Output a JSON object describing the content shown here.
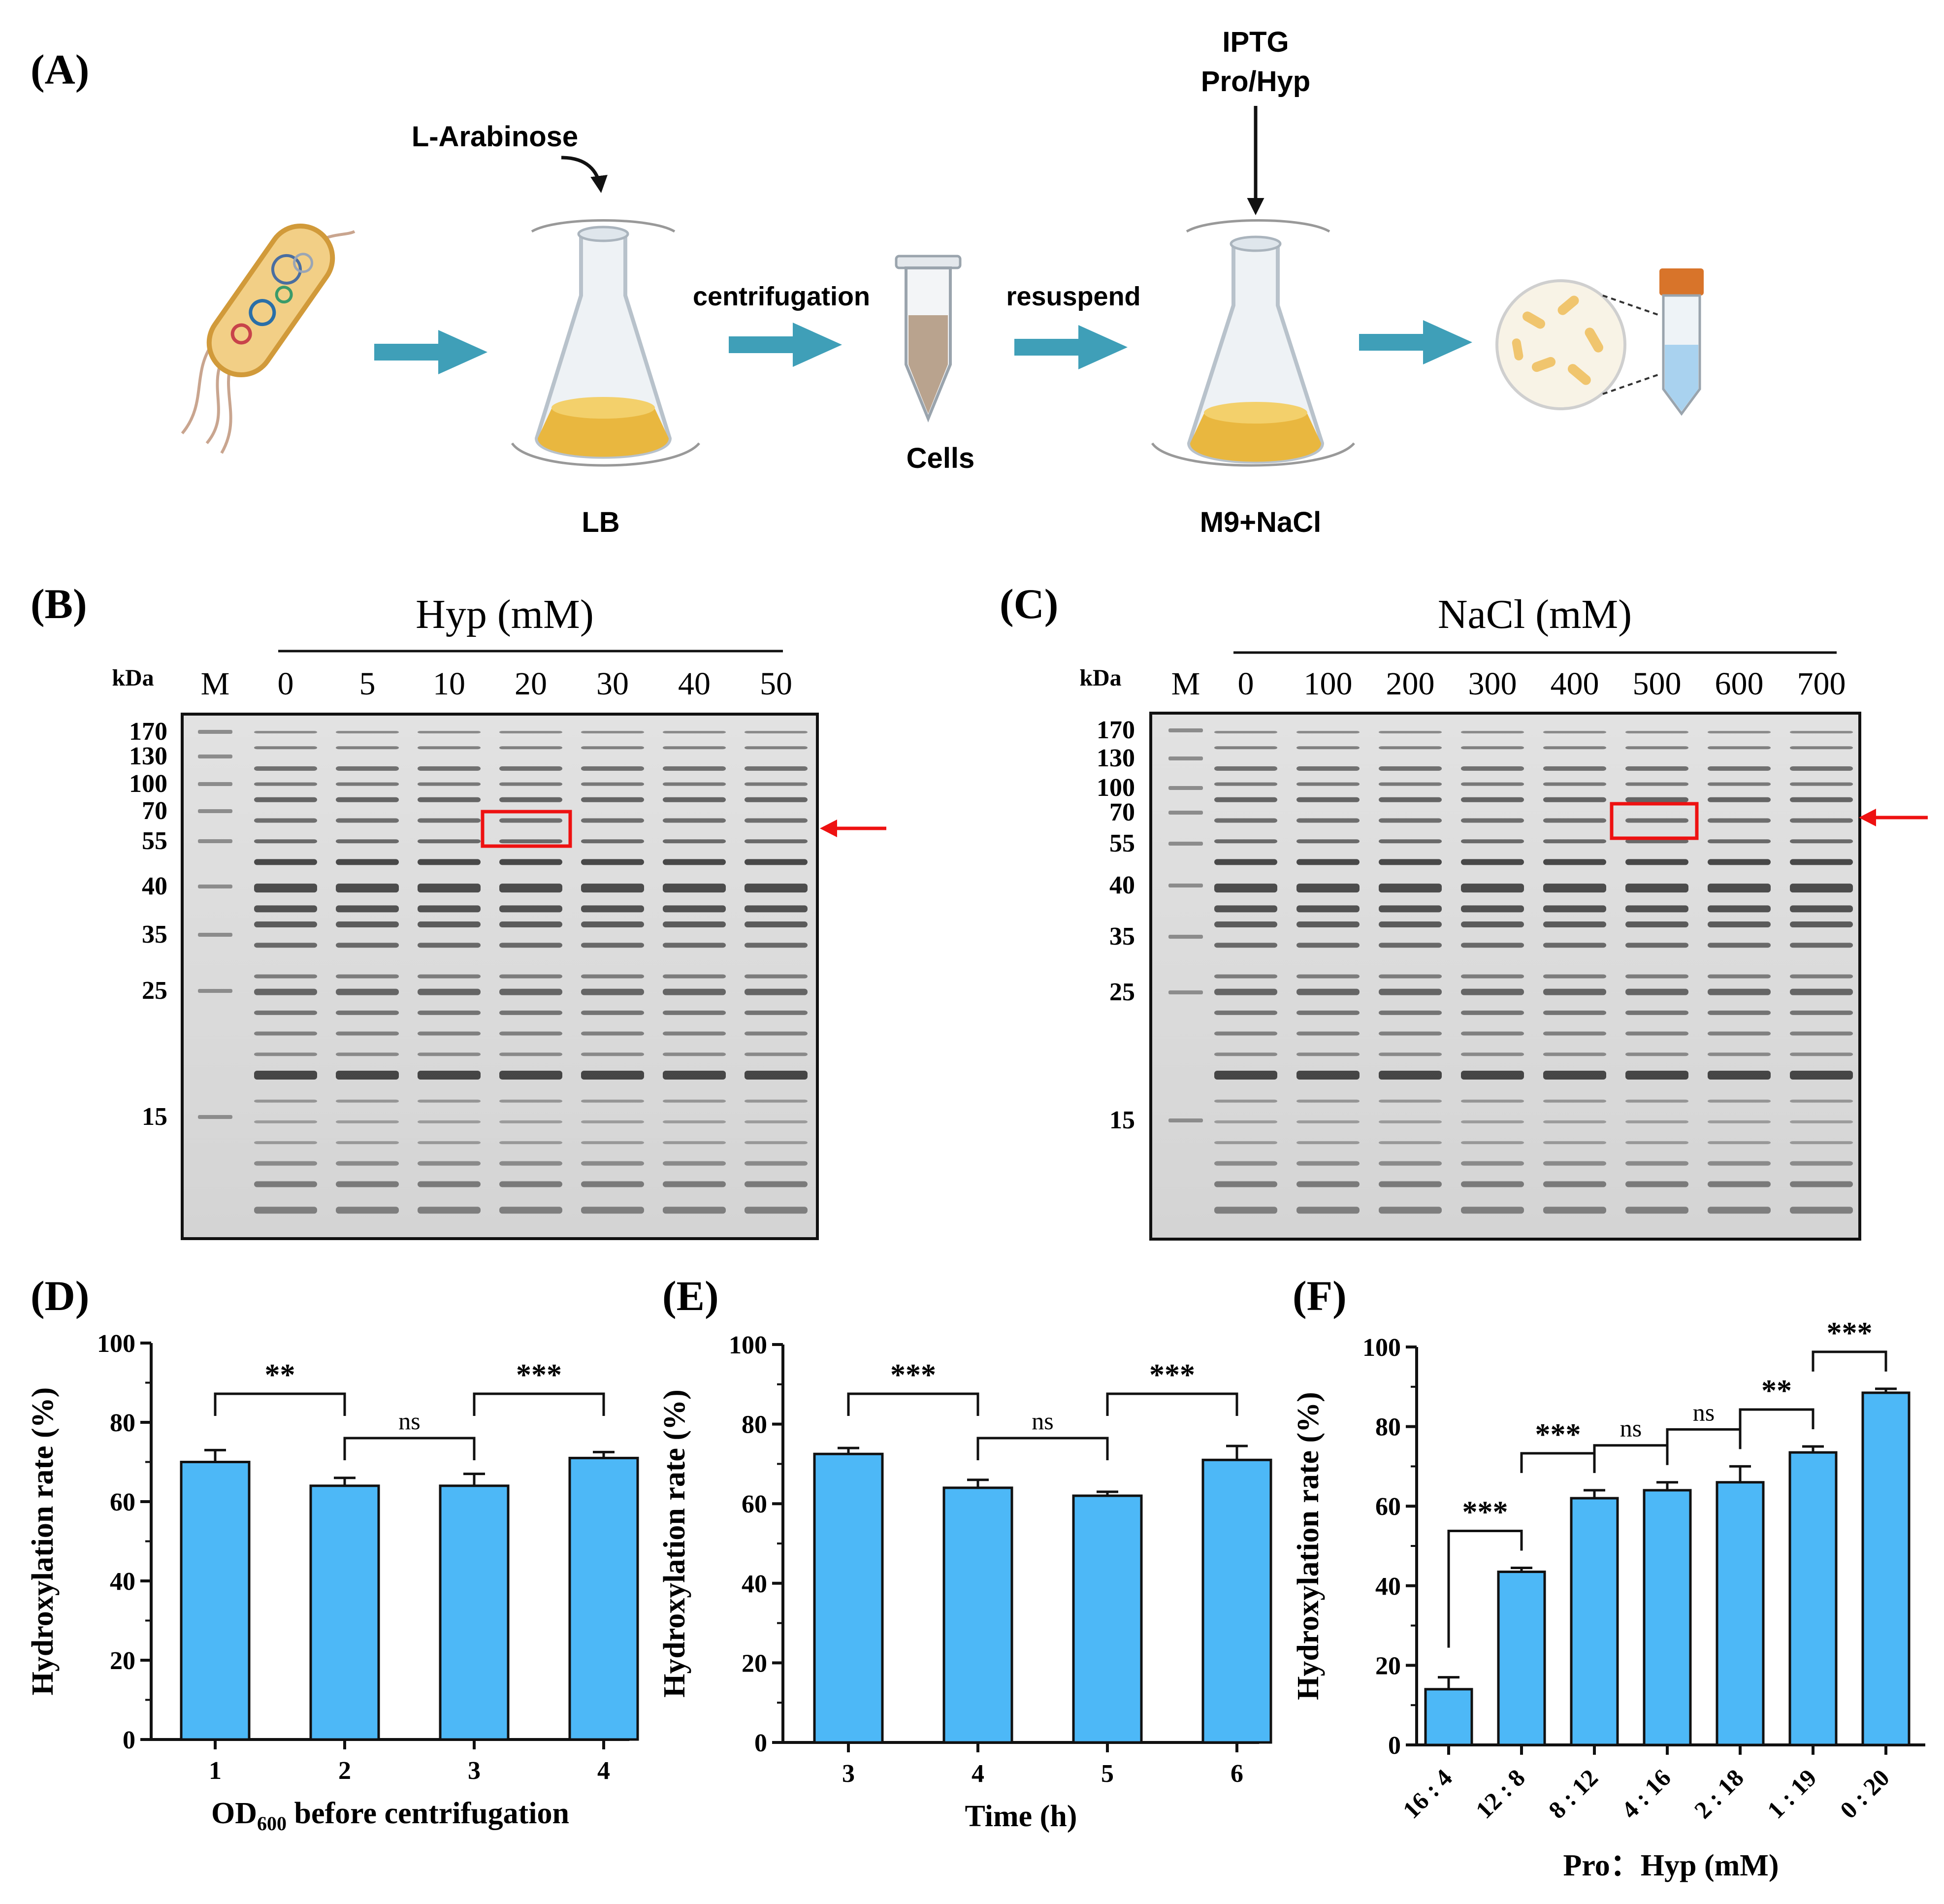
{
  "panels": {
    "a": "(A)",
    "b": "(B)",
    "c": "(C)",
    "d": "(D)",
    "e": "(E)",
    "f": "(F)"
  },
  "workflow": {
    "inducer1": "L-Arabinose",
    "inducer2_line1": "IPTG",
    "inducer2_line2": "Pro/Hyp",
    "step1": "centrifugation",
    "step2": "resuspend",
    "medium1": "LB",
    "cells": "Cells",
    "medium2": "M9+NaCl",
    "colors": {
      "arrow": "#3f9fb8",
      "culture": "#e9b73f",
      "flask": "#dfe6ec"
    }
  },
  "gel_b": {
    "title": "Hyp (mM)",
    "kda_label": "kDa",
    "marker_label": "M",
    "lanes": [
      "0",
      "5",
      "10",
      "20",
      "30",
      "40",
      "50"
    ],
    "markers": [
      "170",
      "130",
      "100",
      "70",
      "55",
      "40",
      "35",
      "25",
      "15"
    ],
    "highlight_lane": "20"
  },
  "gel_c": {
    "title": "NaCl (mM)",
    "kda_label": "kDa",
    "marker_label": "M",
    "lanes": [
      "0",
      "100",
      "200",
      "300",
      "400",
      "500",
      "600",
      "700"
    ],
    "markers": [
      "170",
      "130",
      "100",
      "70",
      "55",
      "40",
      "35",
      "25",
      "15"
    ],
    "highlight_lane": "500"
  },
  "chart_data": [
    {
      "type": "bar",
      "panel": "(D)",
      "categories": [
        "1",
        "2",
        "3",
        "4"
      ],
      "values": [
        70,
        64,
        64,
        71
      ],
      "errors": [
        3,
        2,
        3,
        1.5
      ],
      "ylabel": "Hydroxylation rate (%)",
      "xlabel_main": "OD",
      "xlabel_sub": "600",
      "xlabel_rest": "before centrifugation",
      "ylim": [
        0,
        100
      ],
      "yticks": [
        "0",
        "20",
        "40",
        "60",
        "80",
        "100"
      ],
      "comparisons": [
        {
          "from": 0,
          "to": 1,
          "label": "**"
        },
        {
          "from": 1,
          "to": 2,
          "label": "ns"
        },
        {
          "from": 2,
          "to": 3,
          "label": "***"
        }
      ],
      "bar_color": "#4db8f7"
    },
    {
      "type": "bar",
      "panel": "(E)",
      "categories": [
        "3",
        "4",
        "5",
        "6"
      ],
      "values": [
        72.5,
        64,
        62,
        71
      ],
      "errors": [
        1.5,
        2,
        1,
        3.5
      ],
      "ylabel": "Hydroxylation rate (%)",
      "xlabel": "Time (h)",
      "ylim": [
        0,
        100
      ],
      "yticks": [
        "0",
        "20",
        "40",
        "60",
        "80",
        "100"
      ],
      "comparisons": [
        {
          "from": 0,
          "to": 1,
          "label": "***"
        },
        {
          "from": 1,
          "to": 2,
          "label": "ns"
        },
        {
          "from": 2,
          "to": 3,
          "label": "***"
        }
      ],
      "bar_color": "#4db8f7"
    },
    {
      "type": "bar",
      "panel": "(F)",
      "categories": [
        "16 : 4",
        "12 : 8",
        "8 : 12",
        "4 : 16",
        "2 : 18",
        "1 : 19",
        "0 : 20"
      ],
      "values": [
        14,
        43.5,
        62,
        64,
        66,
        73.5,
        88.5
      ],
      "errors": [
        3,
        1,
        2,
        2,
        4,
        1.5,
        1
      ],
      "ylabel": "Hydroxylation rate (%)",
      "xlabel": "Pro：Hyp (mM)",
      "ylim": [
        0,
        100
      ],
      "yticks": [
        "0",
        "20",
        "40",
        "60",
        "80",
        "100"
      ],
      "comparisons": [
        {
          "from": 0,
          "to": 1,
          "label": "***"
        },
        {
          "from": 1,
          "to": 2,
          "label": "***"
        },
        {
          "from": 2,
          "to": 3,
          "label": "ns"
        },
        {
          "from": 3,
          "to": 4,
          "label": "ns"
        },
        {
          "from": 4,
          "to": 5,
          "label": "**"
        },
        {
          "from": 5,
          "to": 6,
          "label": "***"
        }
      ],
      "bar_color": "#4db8f7"
    }
  ]
}
